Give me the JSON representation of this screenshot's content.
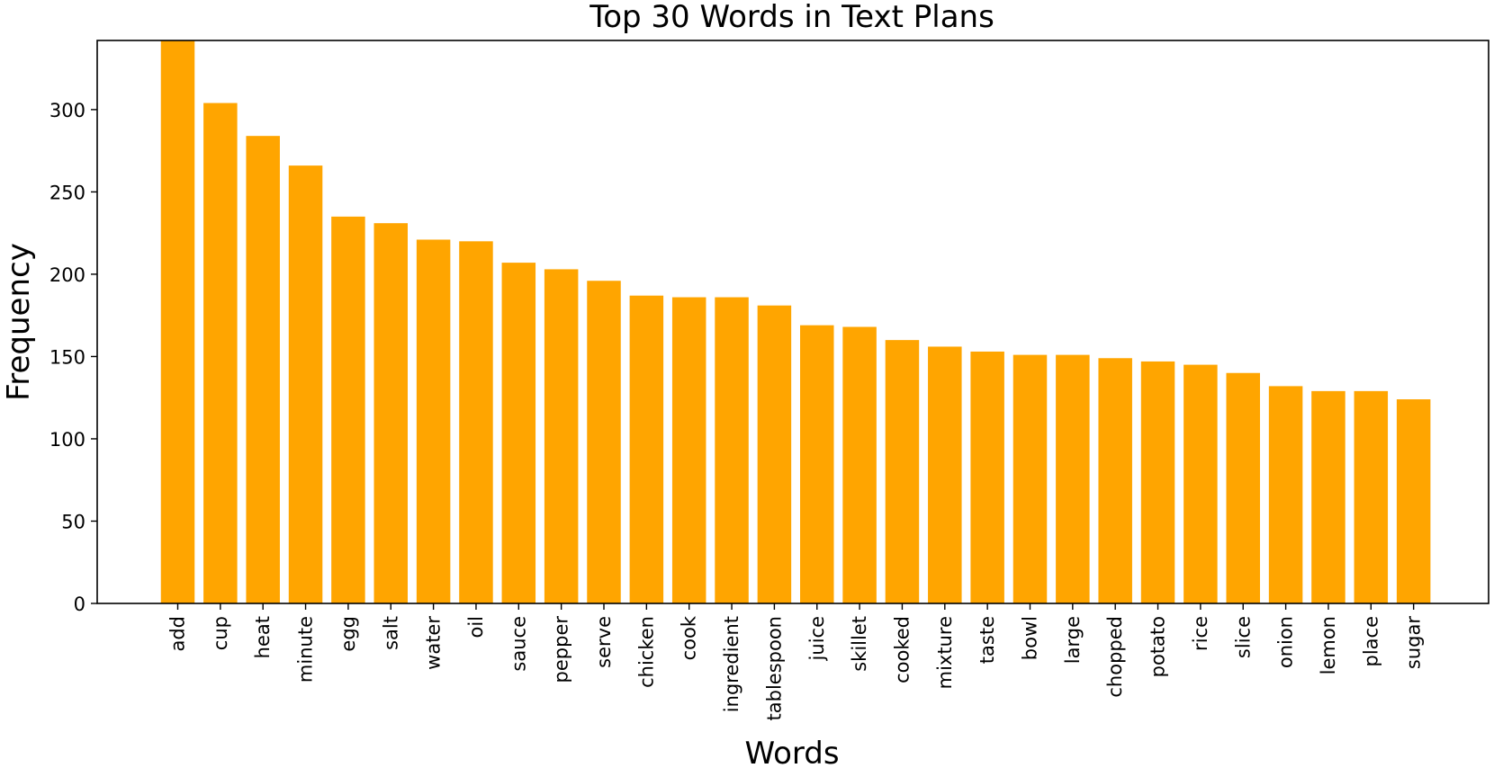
{
  "chart_data": {
    "type": "bar",
    "title": "Top 30 Words in Text Plans",
    "xlabel": "Words",
    "ylabel": "Frequency",
    "ylim": [
      0,
      342
    ],
    "yticks": [
      0,
      50,
      100,
      150,
      200,
      250,
      300
    ],
    "bar_color": "#ffa500",
    "grid": false,
    "categories": [
      "add",
      "cup",
      "heat",
      "minute",
      "egg",
      "salt",
      "water",
      "oil",
      "sauce",
      "pepper",
      "serve",
      "chicken",
      "cook",
      "ingredient",
      "tablespoon",
      "juice",
      "skillet",
      "cooked",
      "mixture",
      "taste",
      "bowl",
      "large",
      "chopped",
      "potato",
      "rice",
      "slice",
      "onion",
      "lemon",
      "place",
      "sugar"
    ],
    "values": [
      342,
      304,
      284,
      266,
      235,
      231,
      221,
      220,
      207,
      203,
      196,
      187,
      186,
      186,
      181,
      169,
      168,
      160,
      156,
      153,
      151,
      151,
      149,
      147,
      145,
      140,
      132,
      129,
      129,
      124
    ]
  }
}
